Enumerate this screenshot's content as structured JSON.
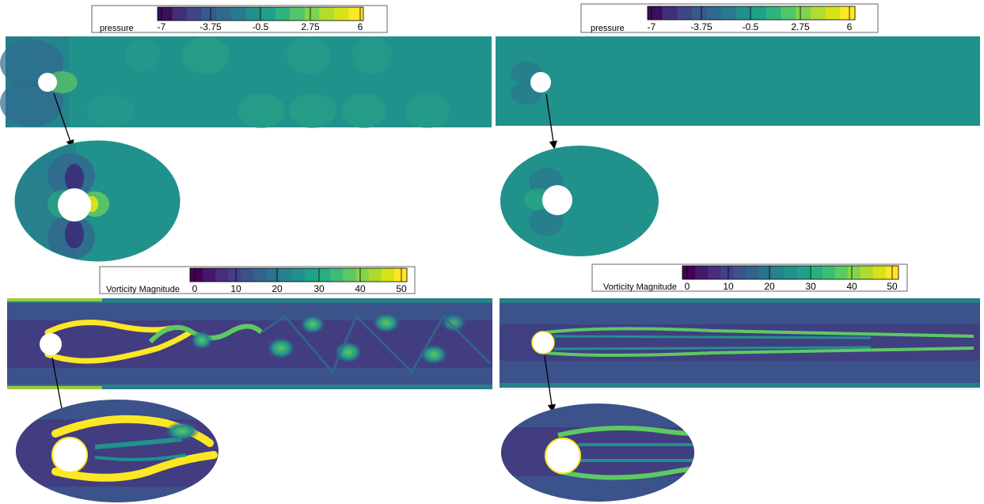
{
  "panels": [
    {
      "name": "pressure-left",
      "legend": {
        "title": "pressure",
        "ticks": [
          "-7",
          "-3.75",
          "-0.5",
          "2.75",
          "6"
        ],
        "colors": [
          "#3b0f5a",
          "#412f7a",
          "#3f4688",
          "#37598c",
          "#2f6b8e",
          "#287b8e",
          "#21908d",
          "#1fa088",
          "#2eb37c",
          "#52c569",
          "#7fd34e",
          "#b0dd2f",
          "#d8e219",
          "#fde725"
        ]
      }
    },
    {
      "name": "pressure-right",
      "legend": {
        "title": "pressure",
        "ticks": [
          "-7",
          "-3.75",
          "-0.5",
          "2.75",
          "6"
        ],
        "colors": [
          "#3b0f5a",
          "#412f7a",
          "#3f4688",
          "#37598c",
          "#2f6b8e",
          "#287b8e",
          "#21908d",
          "#1fa088",
          "#2eb37c",
          "#52c569",
          "#7fd34e",
          "#b0dd2f",
          "#d8e219",
          "#fde725"
        ]
      }
    },
    {
      "name": "vorticity-left",
      "legend": {
        "title": "Vorticity Magnitude",
        "ticks": [
          "0",
          "10",
          "20",
          "30",
          "40",
          "50"
        ],
        "colors": [
          "#440154",
          "#46186d",
          "#472d7b",
          "#424086",
          "#3b528b",
          "#33638d",
          "#2c728e",
          "#26828e",
          "#21918c",
          "#1fa088",
          "#28ae80",
          "#3fbc73",
          "#5ec962",
          "#84d44b",
          "#addc30",
          "#d8e219",
          "#fde725"
        ]
      }
    },
    {
      "name": "vorticity-right",
      "legend": {
        "title": "Vorticity Magnitude",
        "ticks": [
          "0",
          "10",
          "20",
          "30",
          "40",
          "50"
        ],
        "colors": [
          "#440154",
          "#46186d",
          "#472d7b",
          "#424086",
          "#3b528b",
          "#33638d",
          "#2c728e",
          "#26828e",
          "#21918c",
          "#1fa088",
          "#28ae80",
          "#3fbc73",
          "#5ec962",
          "#84d44b",
          "#addc30",
          "#d8e219",
          "#fde725"
        ]
      }
    }
  ],
  "colors": {
    "pressure_base": "#21918c",
    "pressure_low": "#31688e",
    "pressure_high": "#5ec962",
    "vorticity_base": "#3b528b",
    "vorticity_dark": "#440154",
    "vorticity_mid": "#21918c",
    "vorticity_high": "#fde725",
    "arrow": "#000000"
  }
}
